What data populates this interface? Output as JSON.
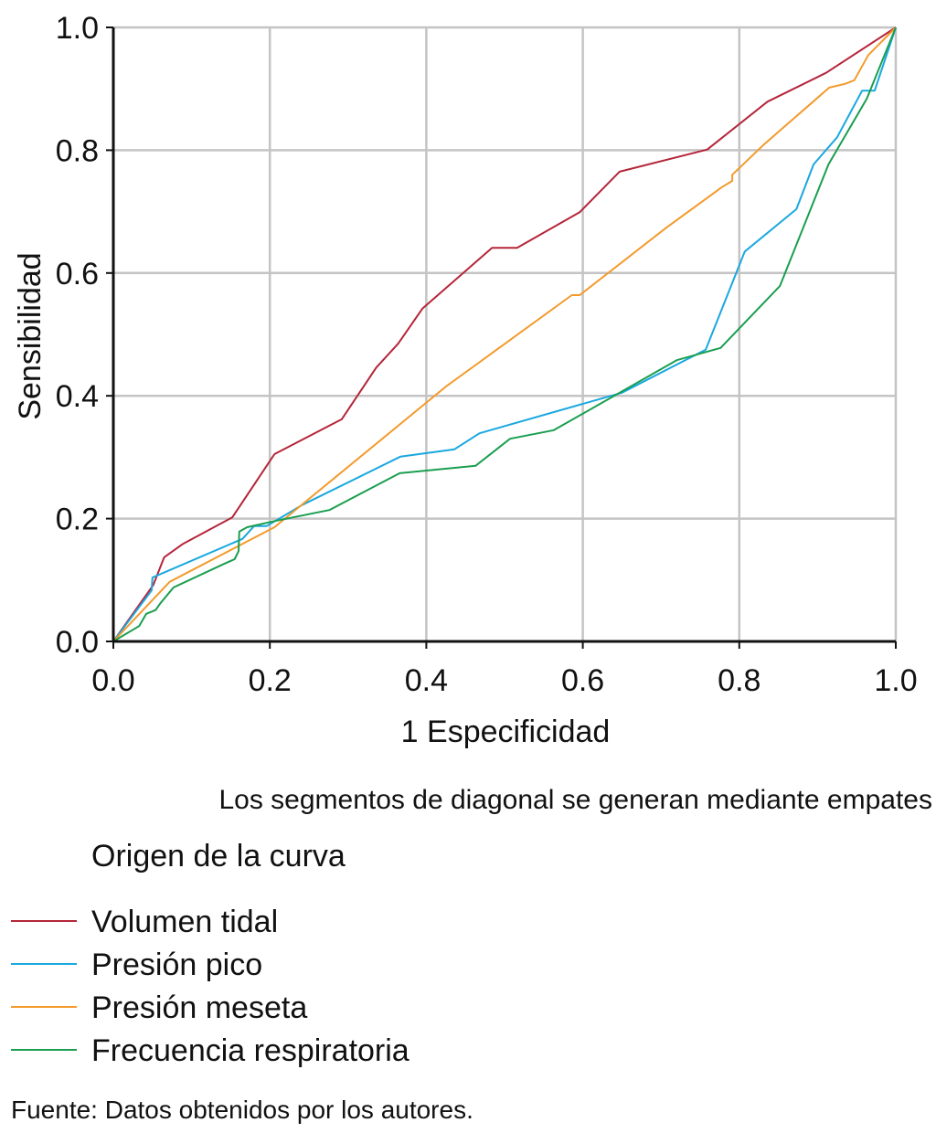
{
  "chart_data": {
    "type": "line",
    "title": "",
    "xlabel": "1 Especificidad",
    "ylabel": "Sensibilidad",
    "xlim": [
      0,
      1
    ],
    "ylim": [
      0,
      1
    ],
    "grid": true,
    "xticks": [
      "0.0",
      "0.2",
      "0.4",
      "0.6",
      "0.8",
      "1.0"
    ],
    "yticks": [
      "0.0",
      "0.2",
      "0.4",
      "0.6",
      "0.8",
      "1.0"
    ],
    "xtick_values": [
      0,
      0.2,
      0.4,
      0.6,
      0.8,
      1.0
    ],
    "ytick_values": [
      0,
      0.2,
      0.4,
      0.6,
      0.8,
      1.0
    ],
    "note": "Los segmentos de diagonal se generan mediante empates",
    "legend_title": "Origen de la curva",
    "legend_placement": "bottom-left",
    "series": [
      {
        "name": "Volumen tidal",
        "color": "#b5253a",
        "x": [
          0,
          0.051,
          0.065,
          0.089,
          0.152,
          0.206,
          0.292,
          0.336,
          0.364,
          0.395,
          0.484,
          0.516,
          0.596,
          0.647,
          0.759,
          0.836,
          0.911,
          1
        ],
        "y": [
          0,
          0.092,
          0.137,
          0.159,
          0.202,
          0.305,
          0.362,
          0.446,
          0.485,
          0.542,
          0.641,
          0.641,
          0.699,
          0.765,
          0.801,
          0.879,
          0.926,
          1
        ]
      },
      {
        "name": "Presión pico",
        "color": "#1aa8e0",
        "x": [
          0,
          0.049,
          0.05,
          0.165,
          0.18,
          0.196,
          0.241,
          0.367,
          0.436,
          0.468,
          0.65,
          0.757,
          0.807,
          0.873,
          0.895,
          0.925,
          0.957,
          0.973,
          1
        ],
        "y": [
          0,
          0.083,
          0.104,
          0.167,
          0.188,
          0.188,
          0.222,
          0.301,
          0.313,
          0.339,
          0.405,
          0.475,
          0.635,
          0.704,
          0.777,
          0.821,
          0.897,
          0.897,
          1
        ]
      },
      {
        "name": "Presión meseta",
        "color": "#f39a2b",
        "x": [
          0,
          0.072,
          0.206,
          0.425,
          0.586,
          0.596,
          0.706,
          0.778,
          0.791,
          0.791,
          0.832,
          0.915,
          0.935,
          0.947,
          0.965,
          1
        ],
        "y": [
          0,
          0.097,
          0.186,
          0.415,
          0.564,
          0.564,
          0.673,
          0.74,
          0.75,
          0.76,
          0.81,
          0.902,
          0.908,
          0.914,
          0.955,
          1
        ]
      },
      {
        "name": "Frecuencia respiratoria",
        "color": "#1a9e50",
        "x": [
          0,
          0.033,
          0.042,
          0.054,
          0.06,
          0.077,
          0.141,
          0.155,
          0.16,
          0.161,
          0.171,
          0.206,
          0.276,
          0.366,
          0.463,
          0.507,
          0.563,
          0.72,
          0.776,
          0.852,
          0.914,
          0.963,
          1
        ],
        "y": [
          0,
          0.025,
          0.045,
          0.051,
          0.062,
          0.088,
          0.126,
          0.134,
          0.147,
          0.179,
          0.186,
          0.196,
          0.214,
          0.274,
          0.286,
          0.33,
          0.344,
          0.458,
          0.478,
          0.579,
          0.777,
          0.884,
          1
        ]
      }
    ]
  },
  "source": "Fuente: Datos obtenidos por los autores."
}
